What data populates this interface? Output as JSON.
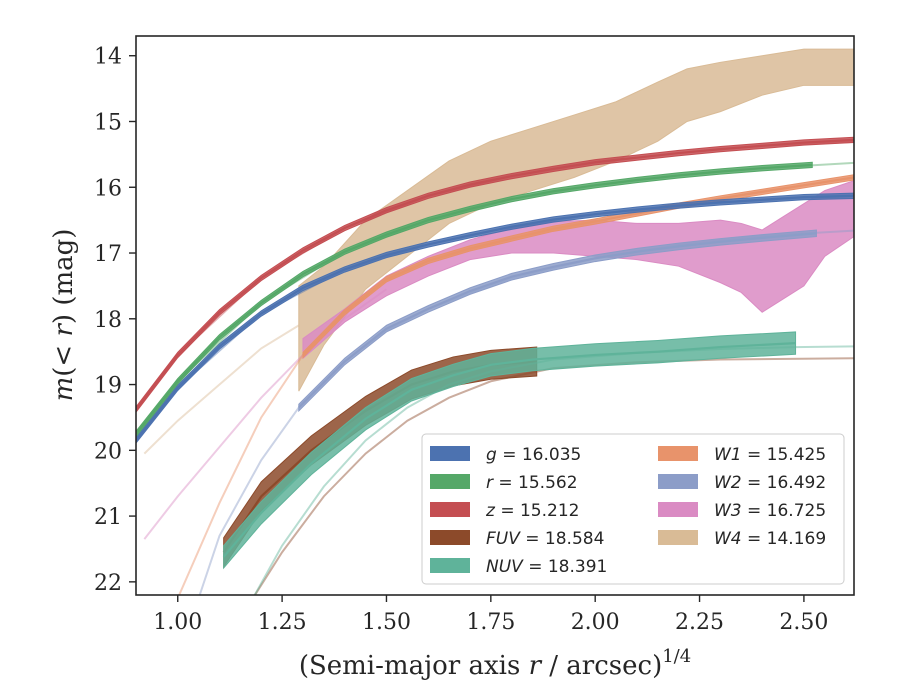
{
  "chart_data": {
    "type": "line",
    "xlabel": "(Semi-major axis r / arcsec)",
    "xlabel_italic_r": "r",
    "xlabel_exponent": "1/4",
    "ylabel": "m(< r) (mag)",
    "xlim": [
      0.9,
      2.62
    ],
    "ylim": [
      22.2,
      13.7
    ],
    "y_inverted": true,
    "xticks": [
      1.0,
      1.25,
      1.5,
      1.75,
      2.0,
      2.25,
      2.5
    ],
    "xtick_labels": [
      "1.00",
      "1.25",
      "1.50",
      "1.75",
      "2.00",
      "2.25",
      "2.50"
    ],
    "yticks": [
      14,
      15,
      16,
      17,
      18,
      19,
      20,
      21,
      22
    ],
    "ytick_labels": [
      "14",
      "15",
      "16",
      "17",
      "18",
      "19",
      "20",
      "21",
      "22"
    ],
    "legend_position": "lower-right",
    "series": [
      {
        "name": "g = 16.035",
        "var": "g",
        "value": "16.035",
        "color": "#4c72b0",
        "band_x": [
          0.9,
          1.0,
          1.1,
          1.2,
          1.3,
          1.4,
          1.5,
          1.6,
          1.7,
          1.8,
          1.9,
          2.0,
          2.1,
          2.2,
          2.3,
          2.4,
          2.5,
          2.62
        ],
        "band_y": [
          19.85,
          19.05,
          18.42,
          17.92,
          17.53,
          17.25,
          17.03,
          16.87,
          16.73,
          16.6,
          16.49,
          16.41,
          16.34,
          16.28,
          16.23,
          16.19,
          16.15,
          16.13
        ],
        "band_half": 0.04,
        "model_x": [
          0.9,
          1.0,
          1.2,
          1.4,
          1.6,
          1.8,
          2.0,
          2.2,
          2.4,
          2.62
        ],
        "model_y": [
          19.85,
          19.05,
          17.92,
          17.25,
          16.87,
          16.6,
          16.41,
          16.28,
          16.2,
          16.13
        ]
      },
      {
        "name": "r = 15.562",
        "var": "r",
        "value": "15.562",
        "color": "#55a868",
        "band_x": [
          0.9,
          1.0,
          1.1,
          1.2,
          1.3,
          1.4,
          1.5,
          1.6,
          1.7,
          1.8,
          1.9,
          2.0,
          2.1,
          2.2,
          2.3,
          2.4,
          2.52
        ],
        "band_y": [
          19.75,
          18.95,
          18.28,
          17.76,
          17.32,
          16.98,
          16.72,
          16.5,
          16.33,
          16.18,
          16.06,
          15.97,
          15.89,
          15.82,
          15.76,
          15.71,
          15.66
        ],
        "band_half": 0.04,
        "model_x": [
          0.9,
          1.0,
          1.2,
          1.4,
          1.6,
          1.8,
          2.0,
          2.2,
          2.4,
          2.62
        ],
        "model_y": [
          19.75,
          18.95,
          17.76,
          16.98,
          16.5,
          16.18,
          15.97,
          15.82,
          15.71,
          15.63
        ]
      },
      {
        "name": "z = 15.212",
        "var": "z",
        "value": "15.212",
        "color": "#c44e52",
        "band_x": [
          0.9,
          1.0,
          1.1,
          1.2,
          1.3,
          1.4,
          1.5,
          1.6,
          1.7,
          1.8,
          1.9,
          2.0,
          2.1,
          2.2,
          2.3,
          2.4,
          2.5,
          2.62
        ],
        "band_y": [
          19.38,
          18.55,
          17.9,
          17.38,
          16.96,
          16.62,
          16.35,
          16.13,
          15.96,
          15.83,
          15.72,
          15.62,
          15.55,
          15.48,
          15.42,
          15.37,
          15.32,
          15.28
        ],
        "band_half": 0.04,
        "model_x": [
          0.9,
          1.0,
          1.2,
          1.4,
          1.6,
          1.8,
          2.0,
          2.2,
          2.4,
          2.62
        ],
        "model_y": [
          19.38,
          18.55,
          17.38,
          16.62,
          16.13,
          15.83,
          15.62,
          15.48,
          15.37,
          15.31
        ]
      },
      {
        "name": "FUV = 18.584",
        "var": "FUV",
        "value": "18.584",
        "color": "#8c4a2a",
        "band_x": [
          1.11,
          1.2,
          1.32,
          1.45,
          1.56,
          1.66,
          1.75,
          1.86
        ],
        "band_y": [
          21.55,
          20.7,
          20.0,
          19.4,
          19.0,
          18.8,
          18.7,
          18.65
        ],
        "band_half": 0.22,
        "model_x": [
          1.18,
          1.25,
          1.35,
          1.45,
          1.55,
          1.65,
          1.75,
          1.9,
          2.1,
          2.3,
          2.62
        ],
        "model_y": [
          22.25,
          21.55,
          20.7,
          20.05,
          19.55,
          19.2,
          18.95,
          18.75,
          18.66,
          18.62,
          18.6
        ]
      },
      {
        "name": "NUV = 18.391",
        "var": "NUV",
        "value": "18.391",
        "color": "#5fb39a",
        "band_x": [
          1.11,
          1.2,
          1.32,
          1.45,
          1.56,
          1.66,
          1.75,
          1.85,
          2.0,
          2.15,
          2.3,
          2.48
        ],
        "band_y": [
          21.62,
          20.95,
          20.2,
          19.52,
          19.08,
          18.86,
          18.7,
          18.62,
          18.55,
          18.5,
          18.43,
          18.37
        ],
        "band_half": 0.17,
        "model_x": [
          1.18,
          1.25,
          1.35,
          1.45,
          1.55,
          1.65,
          1.75,
          1.9,
          2.1,
          2.3,
          2.48,
          2.62
        ],
        "model_y": [
          22.25,
          21.45,
          20.55,
          19.85,
          19.35,
          19.0,
          18.8,
          18.62,
          18.52,
          18.46,
          18.43,
          18.42
        ]
      },
      {
        "name": "W1 = 15.425",
        "var": "W1",
        "value": "15.425",
        "color": "#e8936b",
        "band_x": [
          1.3,
          1.4,
          1.5,
          1.6,
          1.7,
          1.8,
          1.9,
          2.0,
          2.1,
          2.2,
          2.3,
          2.4,
          2.5,
          2.62
        ],
        "band_y": [
          18.55,
          17.9,
          17.4,
          17.12,
          16.93,
          16.78,
          16.63,
          16.52,
          16.4,
          16.28,
          16.17,
          16.07,
          15.97,
          15.85
        ],
        "band_half": 0.04,
        "model_x": [
          1.0,
          1.1,
          1.2,
          1.3,
          1.4,
          1.5,
          1.6,
          1.8,
          2.0,
          2.2,
          2.4,
          2.62
        ],
        "model_y": [
          22.25,
          20.8,
          19.5,
          18.55,
          17.9,
          17.42,
          17.12,
          16.78,
          16.52,
          16.28,
          16.06,
          15.86
        ]
      },
      {
        "name": "W2 = 16.492",
        "var": "W2",
        "value": "16.492",
        "color": "#8c9dc8",
        "band_x": [
          1.29,
          1.4,
          1.5,
          1.6,
          1.7,
          1.8,
          1.9,
          2.0,
          2.1,
          2.2,
          2.3,
          2.4,
          2.53
        ],
        "band_y": [
          19.35,
          18.65,
          18.15,
          17.85,
          17.58,
          17.36,
          17.21,
          17.08,
          16.98,
          16.9,
          16.83,
          16.77,
          16.7
        ],
        "band_half": 0.05,
        "model_x": [
          1.05,
          1.1,
          1.2,
          1.29,
          1.4,
          1.5,
          1.6,
          1.8,
          2.0,
          2.2,
          2.4,
          2.62
        ],
        "model_y": [
          22.25,
          21.3,
          20.15,
          19.35,
          18.65,
          18.18,
          17.85,
          17.38,
          17.08,
          16.88,
          16.74,
          16.66
        ]
      },
      {
        "name": "W3 = 16.725",
        "var": "W3",
        "value": "16.725",
        "color": "#da8bc3",
        "band_x": [
          1.3,
          1.4,
          1.5,
          1.6,
          1.7,
          1.8,
          1.9,
          2.0,
          2.1,
          2.2,
          2.3,
          2.35,
          2.4,
          2.45,
          2.5,
          2.55,
          2.62
        ],
        "band_y": [
          18.45,
          17.95,
          17.5,
          17.2,
          16.95,
          16.8,
          16.75,
          16.75,
          16.8,
          16.85,
          16.95,
          17.05,
          17.2,
          17.1,
          16.9,
          16.6,
          16.4
        ],
        "band_top": [
          18.3,
          17.85,
          17.35,
          17.05,
          16.8,
          16.62,
          16.52,
          16.5,
          16.55,
          16.55,
          16.5,
          16.55,
          16.65,
          16.45,
          16.25,
          16.05,
          15.9
        ],
        "band_bottom": [
          18.6,
          18.05,
          17.65,
          17.35,
          17.1,
          17.0,
          17.0,
          17.05,
          17.1,
          17.2,
          17.45,
          17.6,
          17.9,
          17.7,
          17.5,
          17.05,
          16.75
        ],
        "model_x": [
          0.92,
          1.0,
          1.1,
          1.2,
          1.3,
          1.4,
          1.5
        ],
        "model_y": [
          21.35,
          20.7,
          19.95,
          19.2,
          18.55,
          18.0,
          17.55
        ]
      },
      {
        "name": "W4 = 14.169",
        "var": "W4",
        "value": "14.169",
        "color": "#d9bb96",
        "band_x": [
          1.29,
          1.35,
          1.45,
          1.55,
          1.65,
          1.75,
          1.85,
          1.95,
          2.05,
          2.15,
          2.22,
          2.3,
          2.4,
          2.5,
          2.62
        ],
        "band_y": [
          18.1,
          17.7,
          17.0,
          16.5,
          16.05,
          15.8,
          15.6,
          15.4,
          15.15,
          14.85,
          14.6,
          14.45,
          14.3,
          14.2,
          14.15
        ],
        "band_top": [
          17.5,
          17.2,
          16.5,
          16.05,
          15.6,
          15.3,
          15.1,
          14.9,
          14.7,
          14.4,
          14.2,
          14.1,
          14.0,
          13.9,
          13.9
        ],
        "band_bottom": [
          19.1,
          18.4,
          17.55,
          17.05,
          16.55,
          16.25,
          16.05,
          15.85,
          15.6,
          15.3,
          15.0,
          14.85,
          14.6,
          14.45,
          14.45
        ],
        "model_x": [
          0.92,
          1.0,
          1.1,
          1.2,
          1.29
        ],
        "model_y": [
          20.05,
          19.55,
          19.0,
          18.45,
          18.1
        ]
      }
    ]
  }
}
